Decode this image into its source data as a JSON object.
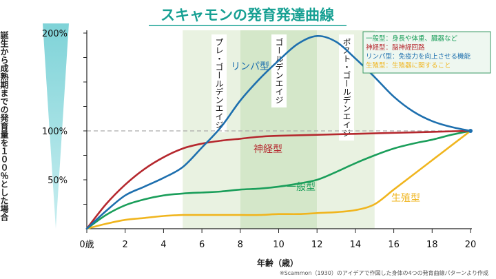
{
  "chart_data": {
    "type": "line",
    "title": "スキャモンの発育発達曲線",
    "ylabel": "誕生から成熟期までの発育量を１００％とした場合",
    "xlabel": "年齢（歳）",
    "x_ticks": [
      "0歳",
      "2",
      "4",
      "6",
      "8",
      "10",
      "12",
      "14",
      "16",
      "18",
      "20"
    ],
    "y_ticks": [
      {
        "value": 50,
        "label": "50%"
      },
      {
        "value": 100,
        "label": "100%"
      },
      {
        "value": 200,
        "label": "200%"
      }
    ],
    "xlim": [
      0,
      20
    ],
    "ylim": [
      0,
      200
    ],
    "reference_line": 100,
    "periods": [
      {
        "label": "プレ・ゴールデンエイジ",
        "start": 5,
        "end": 8
      },
      {
        "label": "ゴールデンエイジ",
        "start": 8,
        "end": 12
      },
      {
        "label": "ポスト・ゴールデンエイジ",
        "start": 12,
        "end": 15
      }
    ],
    "series": [
      {
        "name": "リンパ型",
        "color": "#1d6fae",
        "x": [
          0,
          1,
          2,
          3,
          4,
          5,
          6,
          7,
          8,
          9,
          10,
          11,
          12,
          13,
          14,
          15,
          16,
          17,
          18,
          19,
          20
        ],
        "values": [
          0,
          18,
          34,
          43,
          52,
          63,
          83,
          104,
          131,
          153,
          172,
          189,
          197,
          191,
          174,
          155,
          135,
          120,
          110,
          104,
          100
        ]
      },
      {
        "name": "神経型",
        "color": "#b5282e",
        "x": [
          0,
          1,
          2,
          3,
          4,
          5,
          6,
          7,
          8,
          9,
          10,
          12,
          14,
          16,
          18,
          20
        ],
        "values": [
          0,
          25,
          45,
          61,
          73,
          82,
          87,
          90,
          92,
          94,
          95,
          96,
          97,
          98,
          99,
          100
        ]
      },
      {
        "name": "一般型",
        "color": "#1a9e5a",
        "x": [
          0,
          1,
          2,
          3,
          4,
          5,
          6,
          7,
          8,
          9,
          10,
          11,
          12,
          13,
          14,
          15,
          16,
          17,
          18,
          19,
          20
        ],
        "values": [
          0,
          14,
          24,
          30,
          34,
          36,
          37,
          38,
          40,
          41,
          43,
          46,
          50,
          58,
          67,
          75,
          82,
          87,
          91,
          96,
          100
        ]
      },
      {
        "name": "生殖型",
        "color": "#f0b51e",
        "x": [
          0,
          1,
          2,
          3,
          4,
          5,
          6,
          7,
          8,
          9,
          10,
          11,
          12,
          13,
          14,
          15,
          16,
          17,
          18,
          19,
          20
        ],
        "values": [
          0,
          5,
          9,
          11,
          13,
          14,
          14,
          14,
          14,
          14,
          15,
          15,
          16,
          17,
          19,
          25,
          40,
          55,
          70,
          85,
          100
        ]
      }
    ],
    "series_labels": [
      {
        "name": "リンパ型",
        "color": "#1d6fae"
      },
      {
        "name": "神経型",
        "color": "#b5282e"
      },
      {
        "name": "一般型",
        "color": "#1a9e5a"
      },
      {
        "name": "生殖型",
        "color": "#f0b51e"
      }
    ],
    "legend": {
      "placement": "top-right",
      "entries": [
        {
          "text": "一般型：身長や体重、臓器など",
          "color": "#1a9e5a"
        },
        {
          "text": "神経型：脳神経回路",
          "color": "#b5282e"
        },
        {
          "text": "リンパ型：免疫力を向上させる機能",
          "color": "#1d6fae"
        },
        {
          "text": "生殖型：生殖器に関すること",
          "color": "#f0b51e"
        }
      ]
    },
    "source_note": "※Scammon（1930）のアイデアで作図した身体の4つの発育曲線パターンより作成"
  }
}
